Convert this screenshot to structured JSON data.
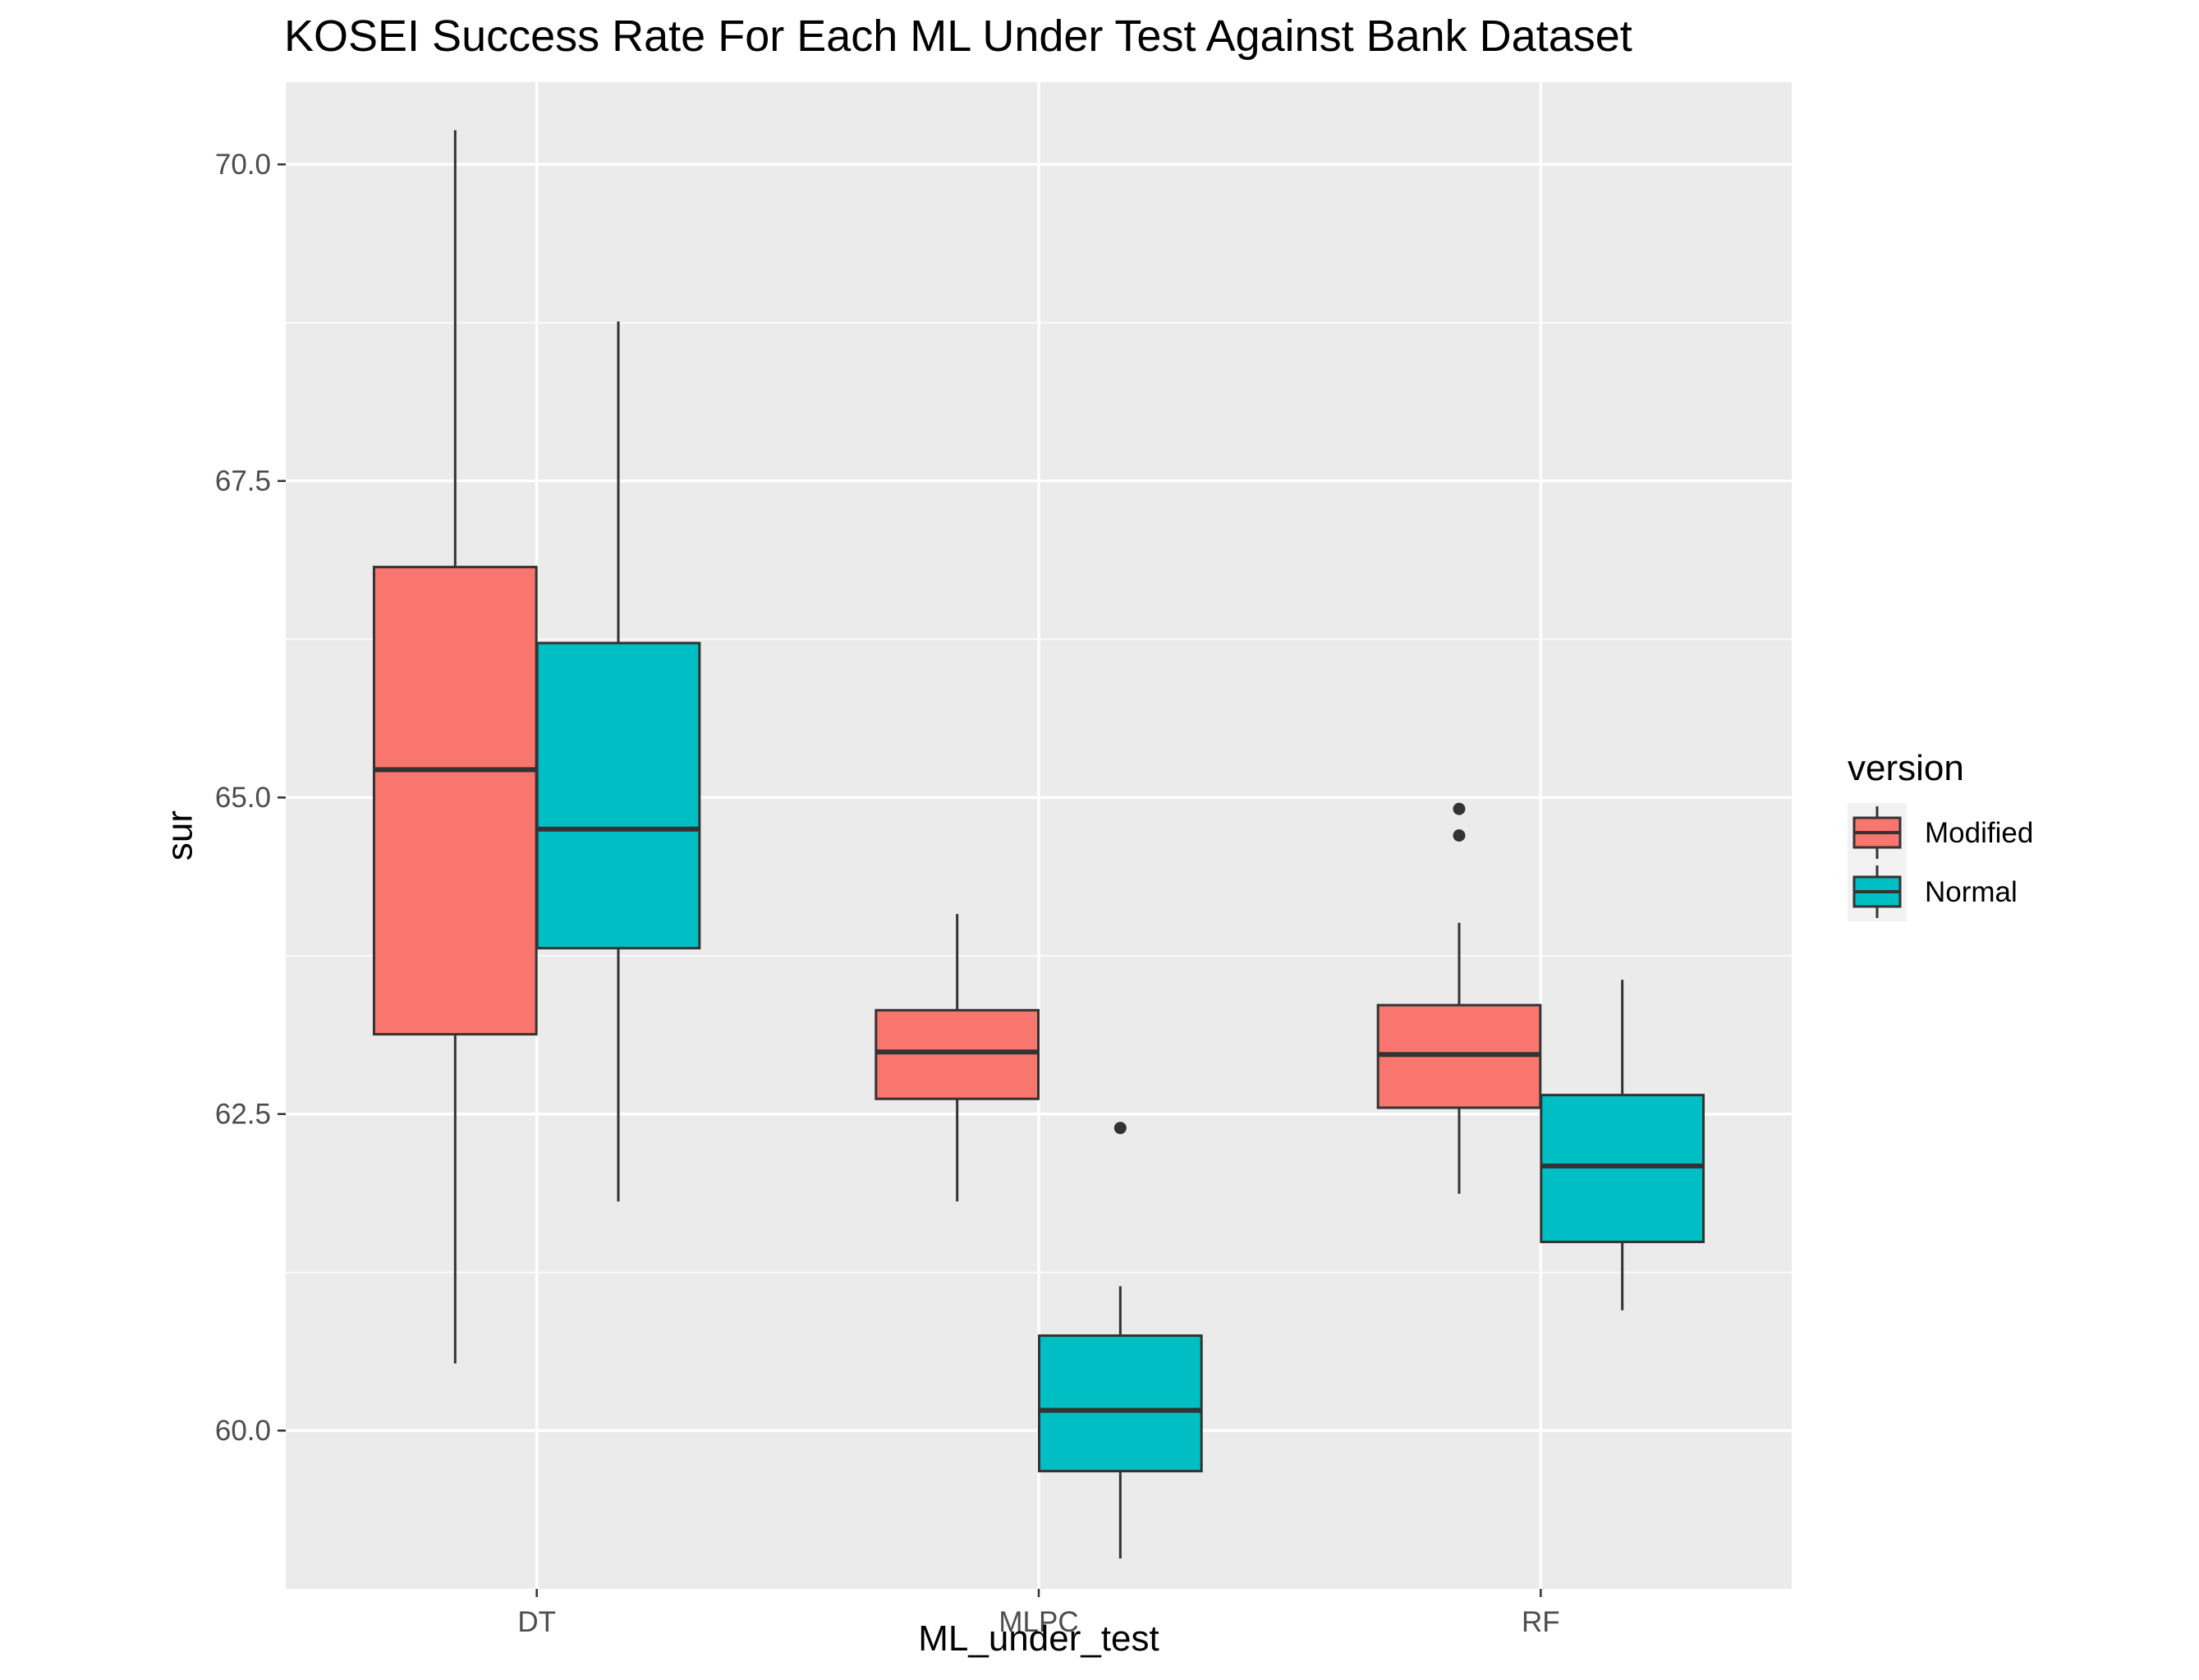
{
  "chart_data": {
    "type": "boxplot",
    "title": "KOSEI Success Rate For Each ML Under Test Against Bank Dataset",
    "xlabel": "ML_under_test",
    "ylabel": "sur",
    "categories": [
      "DT",
      "MLPC",
      "RF"
    ],
    "y_ticks": [
      60.0,
      62.5,
      65.0,
      67.5,
      70.0
    ],
    "y_tick_labels": [
      "60.0",
      "62.5",
      "65.0",
      "67.5",
      "70.0"
    ],
    "ylim": [
      58.75,
      70.65
    ],
    "grid": true,
    "legend": {
      "title": "version",
      "position": "right",
      "entries": [
        "Modified",
        "Normal"
      ]
    },
    "colors": {
      "Modified": "#F8766D",
      "Normal": "#00BFC4",
      "panel": "#EBEBEB",
      "grid": "#FFFFFF",
      "outline": "#333333"
    },
    "series": [
      {
        "name": "Modified",
        "boxes": [
          {
            "category": "DT",
            "whisker_low": 60.53,
            "q1": 63.13,
            "median": 65.22,
            "q3": 66.82,
            "whisker_high": 70.27,
            "outliers": []
          },
          {
            "category": "MLPC",
            "whisker_low": 61.81,
            "q1": 62.62,
            "median": 62.99,
            "q3": 63.32,
            "whisker_high": 64.08,
            "outliers": []
          },
          {
            "category": "RF",
            "whisker_low": 61.87,
            "q1": 62.55,
            "median": 62.97,
            "q3": 63.36,
            "whisker_high": 64.01,
            "outliers": [
              64.91,
              64.7
            ]
          }
        ]
      },
      {
        "name": "Normal",
        "boxes": [
          {
            "category": "DT",
            "whisker_low": 61.81,
            "q1": 63.81,
            "median": 64.75,
            "q3": 66.22,
            "whisker_high": 68.76,
            "outliers": []
          },
          {
            "category": "MLPC",
            "whisker_low": 58.99,
            "q1": 59.68,
            "median": 60.16,
            "q3": 60.75,
            "whisker_high": 61.14,
            "outliers": [
              62.39
            ]
          },
          {
            "category": "RF",
            "whisker_low": 60.95,
            "q1": 61.49,
            "median": 62.09,
            "q3": 62.65,
            "whisker_high": 63.56,
            "outliers": []
          }
        ]
      }
    ]
  }
}
